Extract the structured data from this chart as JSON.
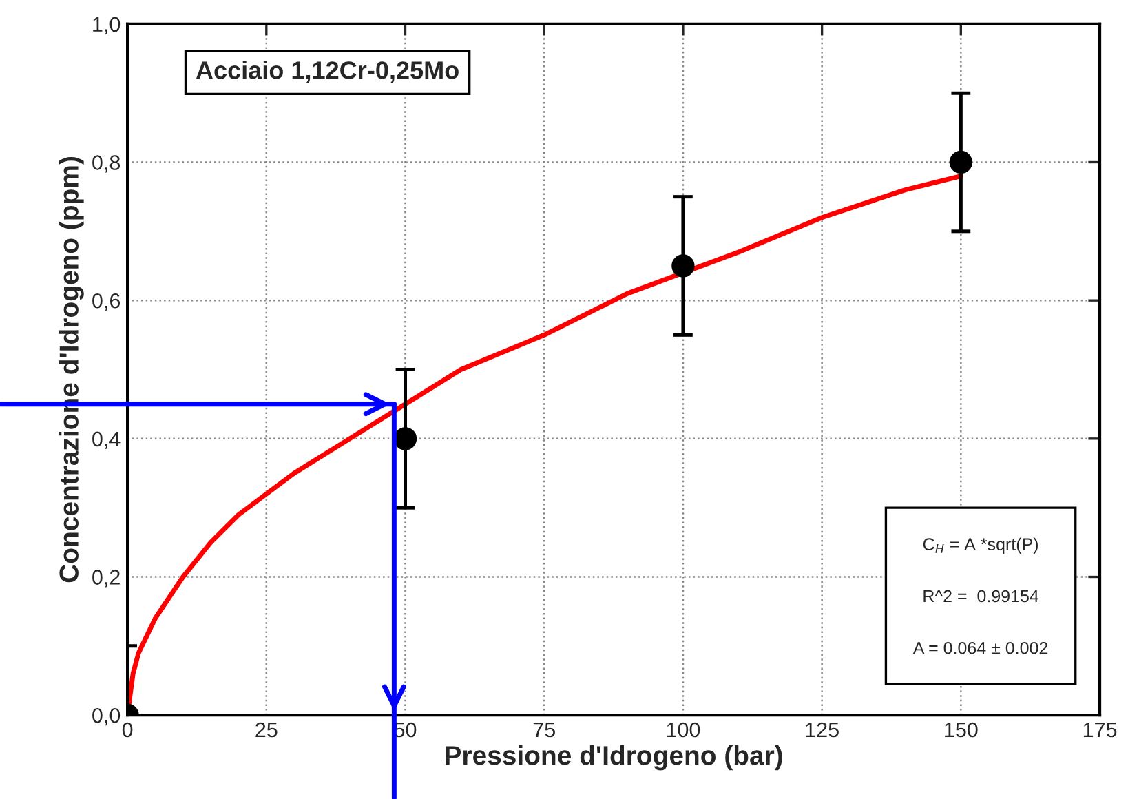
{
  "chart_data": {
    "type": "scatter",
    "xlabel": "Pressione d'Idrogeno (bar)",
    "ylabel": "Concentrazione d'Idrogeno (ppm)",
    "xlim": [
      0,
      175
    ],
    "xticks": [
      0,
      25,
      50,
      75,
      100,
      125,
      150,
      175
    ],
    "ylim": [
      0,
      1.0
    ],
    "yticks": [
      {
        "value": 0,
        "label": "0,0"
      },
      {
        "value": 0.2,
        "label": "0,2"
      },
      {
        "value": 0.4,
        "label": "0,4"
      },
      {
        "value": 0.6,
        "label": "0,6"
      },
      {
        "value": 0.8,
        "label": "0,8"
      },
      {
        "value": 1.0,
        "label": "1,0"
      }
    ],
    "grid": true,
    "marker": "circle",
    "series": [
      {
        "color": "#000000",
        "x": [
          0,
          50,
          100,
          150
        ],
        "values": [
          0,
          0.4,
          0.65,
          0.8
        ],
        "errors": [
          0.1,
          0.1,
          0.1,
          0.1
        ]
      },
      {
        "type": "line",
        "marker": "none",
        "color": "#ff0000",
        "x": [
          0,
          1,
          2,
          5,
          10,
          15,
          20,
          30,
          40,
          48,
          60,
          75,
          90,
          100,
          110,
          125,
          140,
          150
        ],
        "values": [
          0,
          0.06,
          0.09,
          0.14,
          0.2,
          0.25,
          0.29,
          0.35,
          0.4,
          0.44,
          0.5,
          0.55,
          0.61,
          0.64,
          0.67,
          0.72,
          0.76,
          0.78
        ]
      }
    ],
    "ref_lines": [
      {
        "axis": "y",
        "value": 0.45,
        "color": "#0000ff"
      },
      {
        "axis": "x",
        "value": 48,
        "color": "#0000ff"
      }
    ],
    "annotations": [
      "Acciaio 1,12Cr-0,25Mo",
      "C$_{H}$ = A *sqrt(P)",
      "R^2 =  0.99154",
      "A = 0.064 ± 0.002"
    ]
  }
}
